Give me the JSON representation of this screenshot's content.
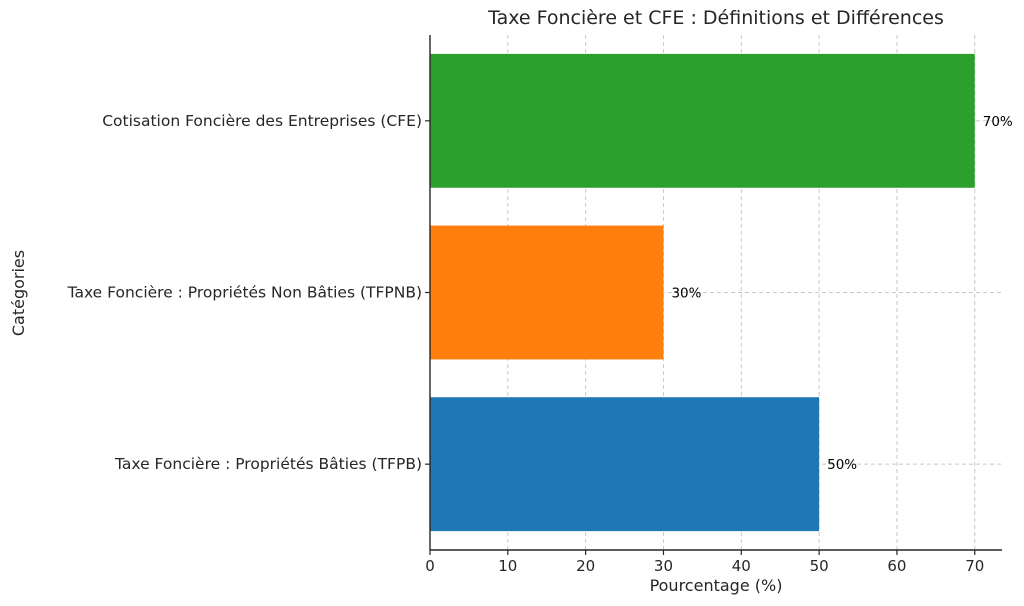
{
  "chart_data": {
    "type": "bar",
    "orientation": "horizontal",
    "title": "Taxe Foncière et CFE : Définitions et Différences",
    "xlabel": "Pourcentage (%)",
    "ylabel": "Catégories",
    "categories": [
      "Taxe Foncière : Propriétés Bâties (TFPB)",
      "Taxe Foncière : Propriétés Non Bâties (TFPNB)",
      "Cotisation Foncière des Entreprises (CFE)"
    ],
    "values": [
      50,
      30,
      70
    ],
    "data_labels": [
      "50%",
      "30%",
      "70%"
    ],
    "colors": [
      "#1f77b4",
      "#ff7f0e",
      "#2ca02c"
    ],
    "xlim": [
      0,
      73.5
    ],
    "xticks": [
      0,
      10,
      20,
      30,
      40,
      50,
      60,
      70
    ],
    "grid": true
  }
}
